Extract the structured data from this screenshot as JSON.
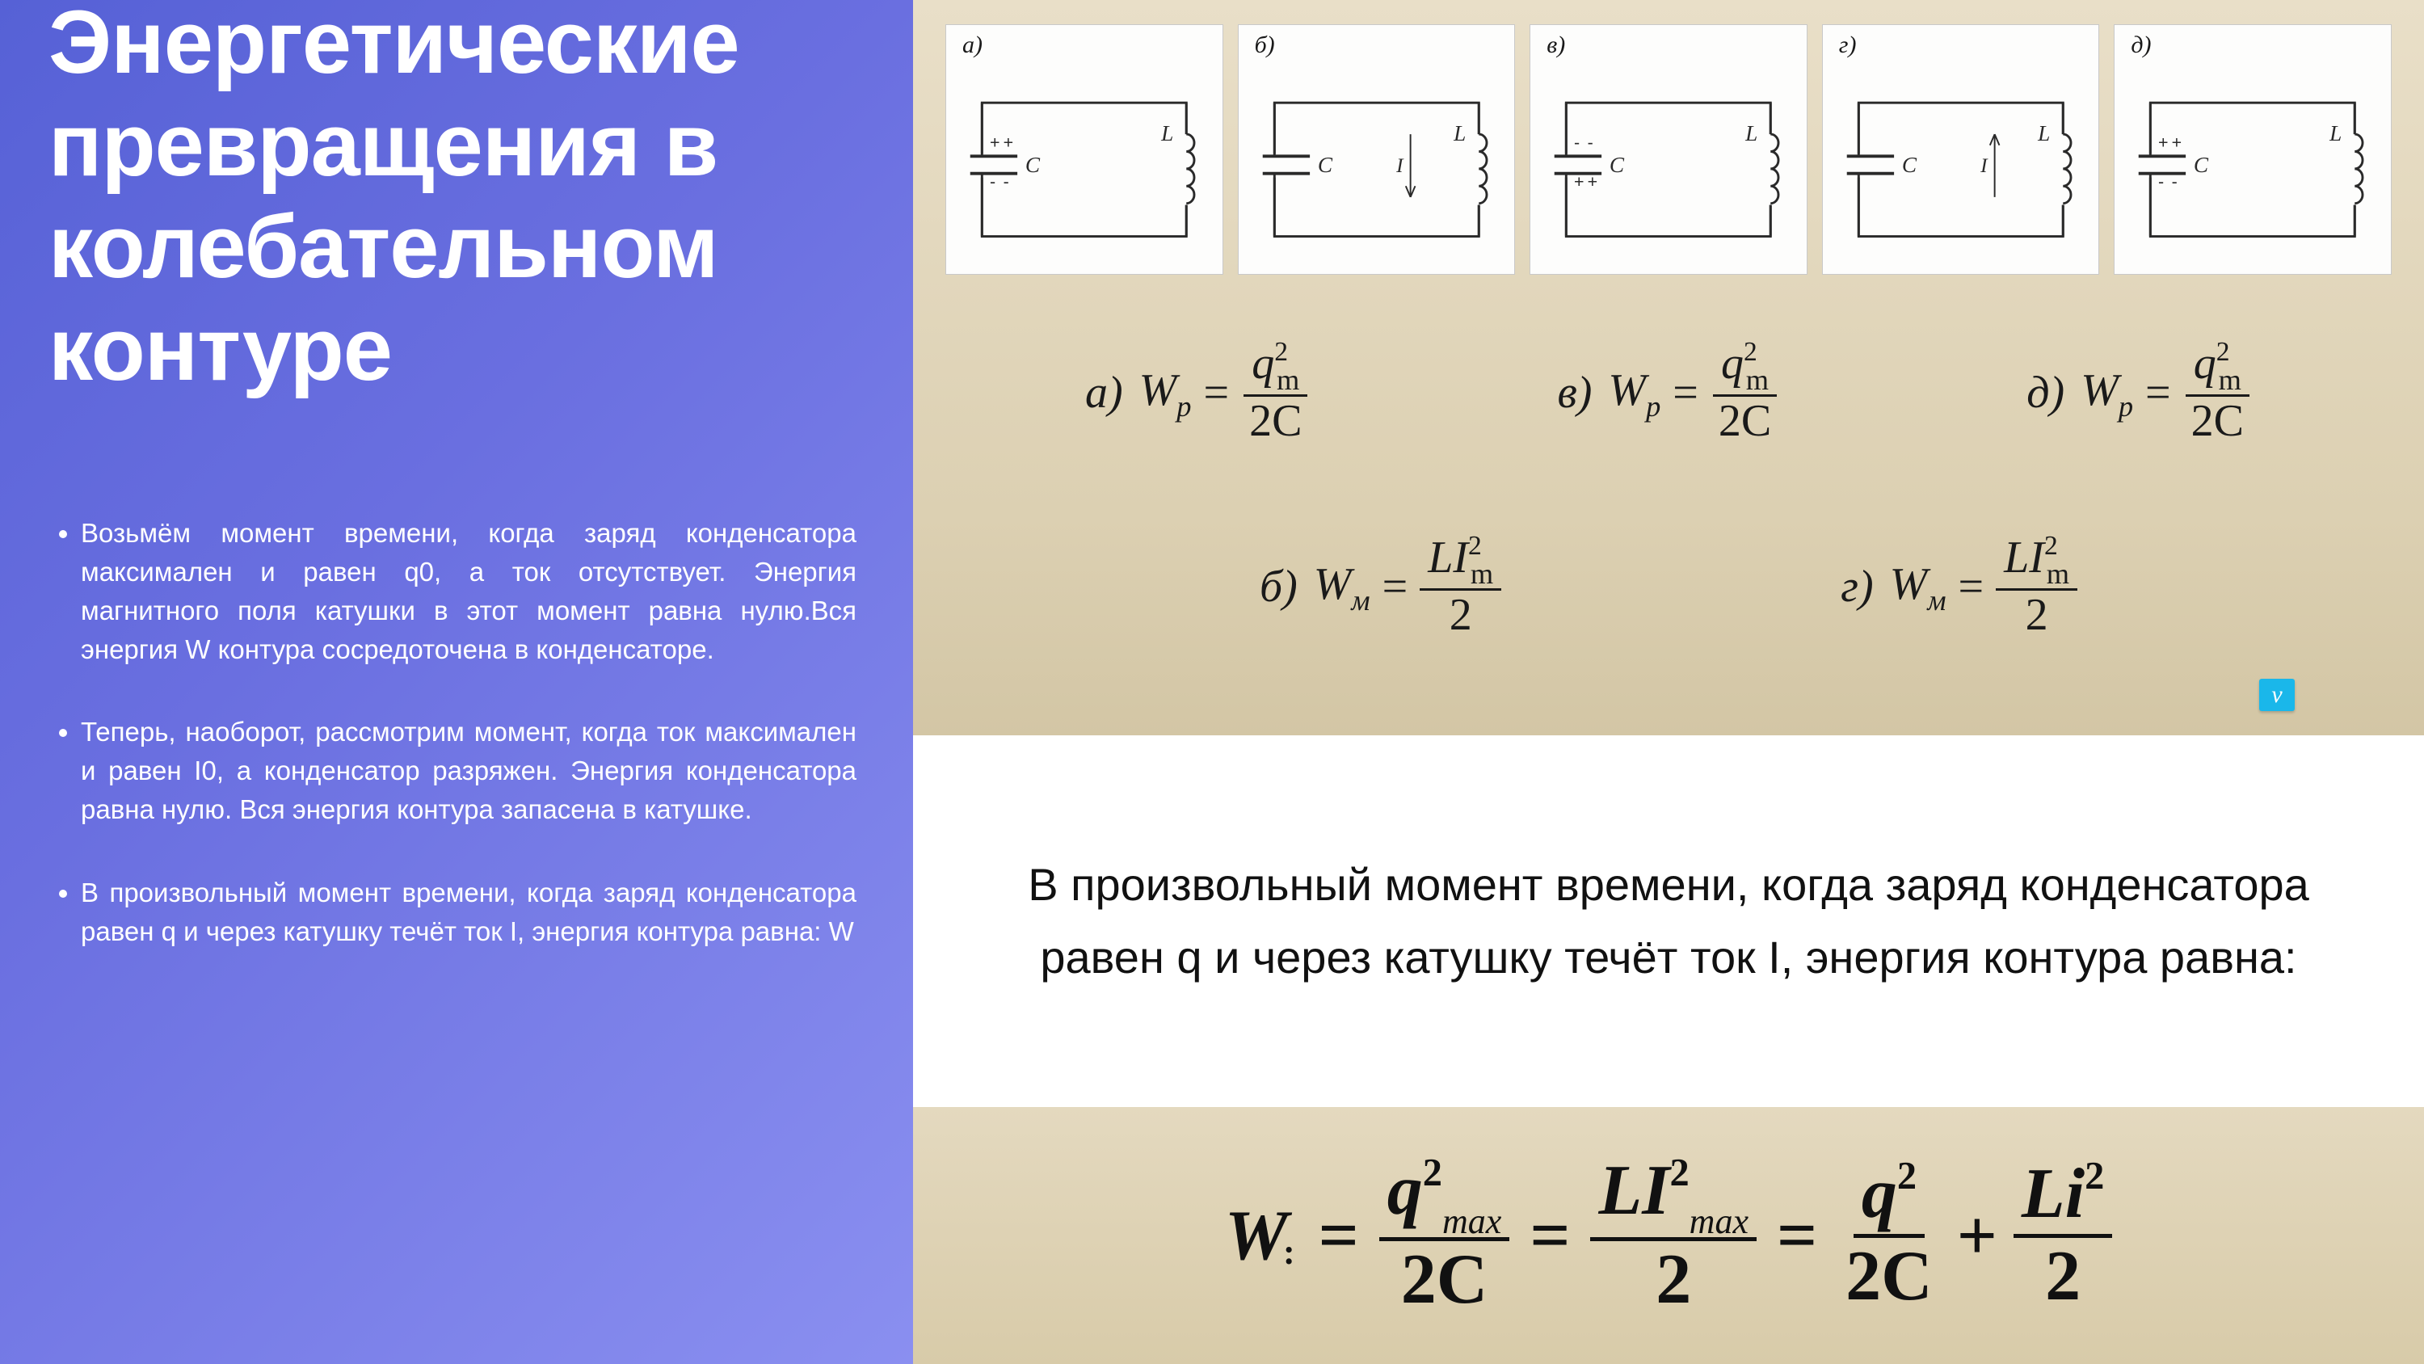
{
  "left": {
    "title": "Энергетические превращения в колебательном контуре",
    "bullets": [
      "Возьмём момент времени, когда заряд конденсатора максимален и равен q0, а ток отсутствует. Энергия магнитного поля катушки в этот момент равна нулю.Вся энергия W контура сосредоточена в конденсаторе.",
      "Теперь, наоборот, рассмотрим момент, когда ток максимален и равен I0, а конденсатор разряжен. Энергия конденсатора равна нулю. Вся энергия контура запасена в катушке.",
      "В произвольный момент времени, когда заряд конденсатора равен q и через катушку течёт ток I, энергия контура равна: W"
    ]
  },
  "circuits": [
    {
      "label": "а)",
      "cap_top": "+",
      "cap_bot": "-",
      "show_current": false,
      "current_dir": ""
    },
    {
      "label": "б)",
      "cap_top": "-",
      "cap_bot": "-",
      "show_current": true,
      "current_dir": "down"
    },
    {
      "label": "в)",
      "cap_top": "-",
      "cap_bot": "+",
      "show_current": false,
      "current_dir": ""
    },
    {
      "label": "г)",
      "cap_top": "-",
      "cap_bot": "-",
      "show_current": true,
      "current_dir": "up"
    },
    {
      "label": "д)",
      "cap_top": "+",
      "cap_bot": "-",
      "show_current": false,
      "current_dir": ""
    }
  ],
  "circuit_labels": {
    "C": "C",
    "L": "L",
    "I": "I"
  },
  "formulas_row1": [
    {
      "lbl": "а)",
      "lhs": "W",
      "lhs_sub": "p",
      "num_base": "q",
      "num_sub": "m",
      "num_sup": "2",
      "den": "2C"
    },
    {
      "lbl": "в)",
      "lhs": "W",
      "lhs_sub": "p",
      "num_base": "q",
      "num_sub": "m",
      "num_sup": "2",
      "den": "2C"
    },
    {
      "lbl": "д)",
      "lhs": "W",
      "lhs_sub": "p",
      "num_base": "q",
      "num_sub": "m",
      "num_sup": "2",
      "den": "2C"
    }
  ],
  "formulas_row2": [
    {
      "lbl": "б)",
      "lhs": "W",
      "lhs_sub": "м",
      "num_base": "LI",
      "num_sub": "m",
      "num_sup": "2",
      "den": "2"
    },
    {
      "lbl": "г)",
      "lhs": "W",
      "lhs_sub": "м",
      "num_base": "LI",
      "num_sub": "m",
      "num_sup": "2",
      "den": "2"
    }
  ],
  "mid_text": "В произвольный момент времени, когда заряд конденсатора равен q и через катушку течёт ток I, энергия контура равна:",
  "big_formula": {
    "lhs": "W",
    "terms": [
      {
        "num_base": "q",
        "num_sub": "max",
        "num_sup": "2",
        "den": "2C"
      },
      {
        "num_base": "LI",
        "num_sub": "max",
        "num_sup": "2",
        "den": "2"
      }
    ],
    "sum": [
      {
        "num_base": "q",
        "num_sup": "2",
        "den": "2C"
      },
      {
        "num_base": "Li",
        "num_sup": "2",
        "den": "2"
      }
    ]
  },
  "colors": {
    "left_grad_from": "#5661d6",
    "left_grad_to": "#8a8ff0",
    "tan_bg_from": "#e9dfc8",
    "tan_bg_to": "#d3c6a5",
    "white": "#ffffff",
    "text_dark": "#1a1a1a",
    "circuit_stroke": "#2a2a2a"
  }
}
